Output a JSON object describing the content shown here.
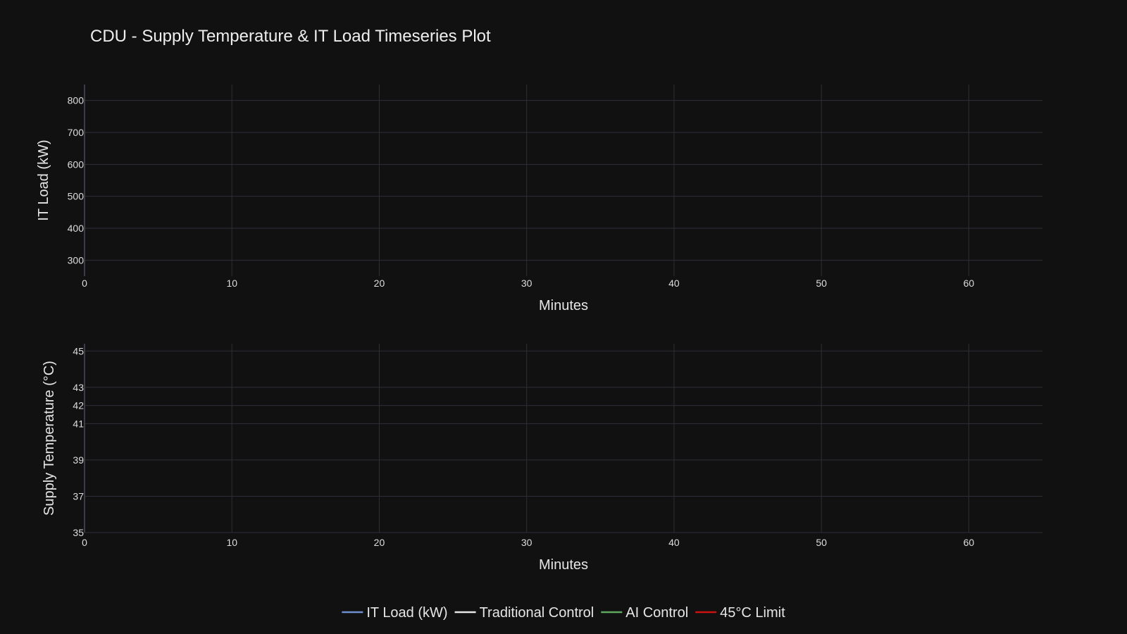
{
  "chart_data": {
    "type": "line",
    "title": "CDU - Supply Temperature & IT Load Timeseries Plot",
    "subplots": [
      {
        "id": "load",
        "xlabel": "Minutes",
        "ylabel": "IT Load (kW)",
        "xlim": [
          0,
          65
        ],
        "ylim": [
          250,
          850
        ],
        "xticks": [
          0,
          10,
          20,
          30,
          40,
          50,
          60
        ],
        "yticks": [
          300,
          400,
          500,
          600,
          700,
          800
        ],
        "series": [
          {
            "name": "IT Load (kW)",
            "x": [],
            "y": []
          }
        ]
      },
      {
        "id": "temp",
        "xlabel": "Minutes",
        "ylabel": "Supply Temperature (°C)",
        "xlim": [
          0,
          65
        ],
        "ylim": [
          35,
          45.4
        ],
        "xticks": [
          0,
          10,
          20,
          30,
          40,
          50,
          60
        ],
        "yticks": [
          35,
          37,
          39,
          41,
          42,
          43,
          45
        ],
        "series": [
          {
            "name": "Traditional Control",
            "x": [],
            "y": []
          },
          {
            "name": "AI Control",
            "x": [],
            "y": []
          },
          {
            "name": "45°C Limit",
            "x": [],
            "y": []
          }
        ]
      }
    ],
    "legend": {
      "placement": "bottom",
      "entries": [
        {
          "name": "IT Load (kW)",
          "color": "#6d8fcf"
        },
        {
          "name": "Traditional Control",
          "color": "#e8e8e8"
        },
        {
          "name": "AI Control",
          "color": "#5fa85f"
        },
        {
          "name": "45°C Limit",
          "color": "#cc1111"
        }
      ]
    },
    "grid": true,
    "colors": {
      "background": "#111111",
      "grid": "#2c2f36",
      "axis": "#3a3d44"
    }
  }
}
